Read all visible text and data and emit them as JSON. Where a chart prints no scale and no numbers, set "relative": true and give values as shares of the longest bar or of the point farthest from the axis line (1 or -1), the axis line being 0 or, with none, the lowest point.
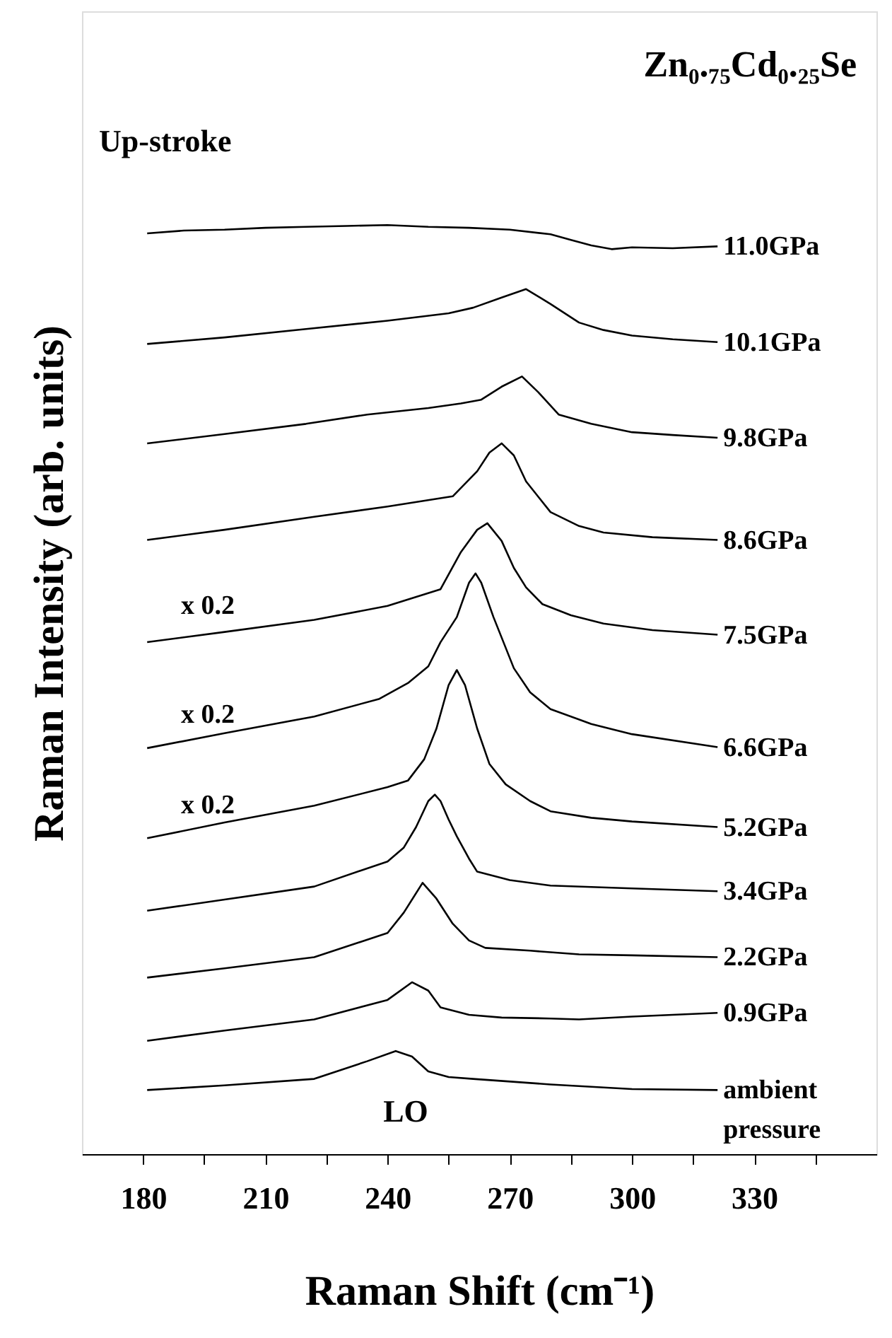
{
  "chart_data": {
    "type": "line",
    "title": "Zn₀.₇₅Cd₀.₂₅Se",
    "xlabel": "Raman Shift (cm⁻¹)",
    "ylabel": "Raman Intensity (arb. units)",
    "relative": true,
    "xlim": [
      165,
      360
    ],
    "xticks": [
      180,
      {
        "value": 195,
        "label": null
      },
      210,
      {
        "value": 225,
        "label": null
      },
      240,
      {
        "value": 255,
        "label": null
      },
      270,
      {
        "value": 285,
        "label": null
      },
      300,
      {
        "value": 315,
        "label": null
      },
      330,
      {
        "value": 345,
        "label": null
      }
    ],
    "tick_labels": "x",
    "grid": false,
    "legend": false,
    "marker": "none",
    "line_style": "solid",
    "annotations": [
      "Up-stroke",
      "x 0.2",
      "x 0.2",
      "x 0.2",
      "LO"
    ],
    "series": [
      {
        "name": "11.0GPa",
        "color": "#000000",
        "x": [
          181,
          190,
          200,
          210,
          220,
          230,
          240,
          250,
          260,
          270,
          280,
          285,
          290,
          295,
          300,
          310,
          321
        ],
        "values": [
          0.991,
          0.994,
          0.995,
          0.997,
          0.998,
          0.999,
          1.0,
          0.998,
          0.997,
          0.995,
          0.99,
          0.984,
          0.978,
          0.974,
          0.976,
          0.975,
          0.977
        ]
      },
      {
        "name": "10.1GPa",
        "color": "#000000",
        "x": [
          181,
          200,
          220,
          240,
          255,
          261,
          268,
          274,
          280,
          287,
          293,
          300,
          310,
          321
        ],
        "values": [
          0.872,
          0.879,
          0.888,
          0.897,
          0.905,
          0.911,
          0.922,
          0.931,
          0.915,
          0.895,
          0.887,
          0.881,
          0.877,
          0.874
        ]
      },
      {
        "name": "9.8GPa",
        "color": "#000000",
        "x": [
          181,
          200,
          220,
          235,
          250,
          258,
          263,
          268,
          273,
          277,
          282,
          290,
          300,
          310,
          321
        ],
        "values": [
          0.765,
          0.775,
          0.786,
          0.796,
          0.803,
          0.808,
          0.812,
          0.826,
          0.837,
          0.82,
          0.796,
          0.786,
          0.777,
          0.774,
          0.771
        ]
      },
      {
        "name": "8.6GPa",
        "color": "#000000",
        "x": [
          181,
          200,
          222,
          240,
          256,
          262,
          265,
          268,
          271,
          274,
          280,
          287,
          293,
          305,
          321
        ],
        "values": [
          0.661,
          0.672,
          0.686,
          0.697,
          0.708,
          0.735,
          0.755,
          0.765,
          0.752,
          0.724,
          0.691,
          0.676,
          0.669,
          0.664,
          0.661
        ]
      },
      {
        "name": "7.5GPa",
        "color": "#000000",
        "x": [
          181,
          200,
          222,
          240,
          253,
          258,
          262,
          264.5,
          268,
          271,
          274,
          278,
          285,
          293,
          305,
          321
        ],
        "values": [
          0.551,
          0.562,
          0.575,
          0.59,
          0.608,
          0.648,
          0.672,
          0.679,
          0.66,
          0.631,
          0.61,
          0.592,
          0.58,
          0.571,
          0.564,
          0.559
        ]
      },
      {
        "name": "6.6GPa",
        "color": "#000000",
        "x": [
          181,
          200,
          222,
          238,
          245,
          250,
          253,
          257,
          260,
          261.6,
          263,
          266,
          271,
          275,
          280,
          290,
          300,
          321
        ],
        "values": [
          0.437,
          0.453,
          0.471,
          0.49,
          0.507,
          0.525,
          0.551,
          0.578,
          0.615,
          0.625,
          0.615,
          0.578,
          0.523,
          0.497,
          0.479,
          0.463,
          0.452,
          0.438
        ]
      },
      {
        "name": "5.2GPa",
        "color": "#000000",
        "x": [
          181,
          200,
          222,
          240,
          245,
          249,
          252,
          255,
          257,
          259,
          262,
          265,
          269,
          275,
          280,
          290,
          300,
          321
        ],
        "values": [
          0.34,
          0.357,
          0.375,
          0.395,
          0.402,
          0.425,
          0.458,
          0.505,
          0.521,
          0.505,
          0.458,
          0.42,
          0.398,
          0.38,
          0.369,
          0.362,
          0.358,
          0.352
        ]
      },
      {
        "name": "3.4GPa",
        "color": "#000000",
        "x": [
          181,
          200,
          222,
          240,
          244,
          247,
          250,
          251.6,
          253,
          255,
          257,
          260,
          262,
          270,
          280,
          300,
          321
        ],
        "values": [
          0.262,
          0.274,
          0.288,
          0.315,
          0.33,
          0.352,
          0.38,
          0.387,
          0.38,
          0.36,
          0.342,
          0.318,
          0.304,
          0.295,
          0.289,
          0.286,
          0.283
        ]
      },
      {
        "name": "2.2GPa",
        "color": "#000000",
        "x": [
          181,
          200,
          222,
          240,
          244,
          248.6,
          252,
          256,
          260,
          264,
          275,
          287,
          300,
          321
        ],
        "values": [
          0.19,
          0.2,
          0.212,
          0.238,
          0.26,
          0.292,
          0.275,
          0.248,
          0.23,
          0.222,
          0.219,
          0.215,
          0.214,
          0.212
        ]
      },
      {
        "name": "0.9GPa",
        "color": "#000000",
        "x": [
          181,
          200,
          222,
          240,
          246,
          250,
          253,
          260,
          268,
          280,
          287,
          300,
          321
        ],
        "values": [
          0.122,
          0.133,
          0.145,
          0.166,
          0.185,
          0.176,
          0.158,
          0.15,
          0.147,
          0.146,
          0.145,
          0.148,
          0.152
        ]
      },
      {
        "name": "ambient pressure",
        "color": "#000000",
        "x": [
          181,
          200,
          222,
          235,
          242,
          246,
          250,
          255,
          261,
          280,
          300,
          321
        ],
        "values": [
          0.069,
          0.074,
          0.081,
          0.1,
          0.111,
          0.105,
          0.089,
          0.083,
          0.081,
          0.075,
          0.07,
          0.069
        ]
      }
    ]
  }
}
